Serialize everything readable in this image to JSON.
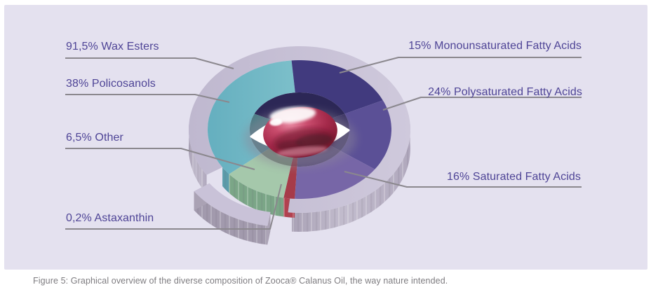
{
  "panel": {
    "background": "#e4e1ef"
  },
  "caption": "Figure 5: Graphical overview of the diverse composition of Zooca® Calanus Oil, the way nature intended.",
  "callout_line_color": "#8b888e",
  "label_color": "#4e4496",
  "chart_data": {
    "type": "pie",
    "style": "3d-exploded-donut",
    "title": "",
    "unit": "%",
    "center_image": "red-softgel-capsule-in-white-eye-shape",
    "legend_position": "callout-labels",
    "note": "Arc spans are the visual angles of the original 3D graphic; value_pct are the labeled data values.",
    "segments": [
      {
        "id": "wax_esters",
        "label": "91,5% Wax Esters",
        "value_pct": 91.5,
        "color": "#c9c2d8",
        "ring": "outer",
        "arc": [
          147,
          456
        ]
      },
      {
        "id": "policosanols",
        "label": "38% Policosanols",
        "value_pct": 38,
        "color": "#6fb6c4",
        "ring": "inner",
        "arc": [
          140,
          265
        ]
      },
      {
        "id": "monounsaturated",
        "label": "15% Monounsaturated Fatty Acids",
        "value_pct": 15,
        "color": "#413a7e",
        "ring": "inner",
        "arc": [
          265,
          335
        ]
      },
      {
        "id": "polysaturated",
        "label": "24% Polysaturated Fatty Acids",
        "value_pct": 24,
        "color": "#5b5096",
        "ring": "inner",
        "arc": [
          335,
          395
        ]
      },
      {
        "id": "saturated",
        "label": "16% Saturated Fatty Acids",
        "value_pct": 16,
        "color": "#7766a7",
        "ring": "inner",
        "arc": [
          35,
          93
        ]
      },
      {
        "id": "other",
        "label": "6,5% Other",
        "value_pct": 6.5,
        "color": "#a5c8ab",
        "ring": "inner",
        "arc": [
          100,
          140
        ]
      },
      {
        "id": "astaxanthin",
        "label": "0,2% Astaxanthin",
        "value_pct": 0.2,
        "color": "#a63b49",
        "ring": "inner",
        "arc": [
          93,
          100
        ]
      }
    ]
  }
}
